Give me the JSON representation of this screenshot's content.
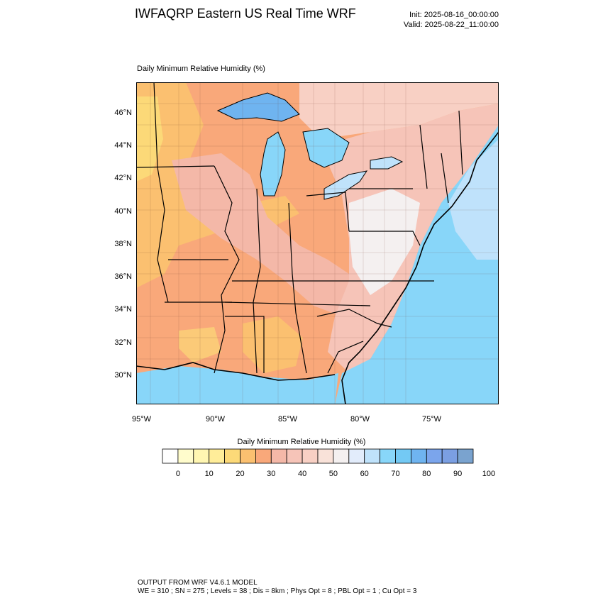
{
  "title": "IWFAQRP Eastern US Real Time WRF",
  "init": "Init: 2025-08-16_00:00:00",
  "valid": "Valid: 2025-08-22_11:00:00",
  "plot_title": "Daily Minimum Relative Humidity   (%)",
  "lat_labels": [
    "46°N",
    "44°N",
    "42°N",
    "40°N",
    "38°N",
    "36°N",
    "34°N",
    "32°N",
    "30°N"
  ],
  "lon_labels": [
    "95°W",
    "90°W",
    "85°W",
    "80°W",
    "75°W"
  ],
  "colorbar": {
    "title": "Daily Minimum Relative Humidity  (%)",
    "tick_labels": [
      "0",
      "10",
      "20",
      "30",
      "40",
      "50",
      "60",
      "70",
      "80",
      "90",
      "100"
    ],
    "colors": [
      "#ffffff",
      "#fffccc",
      "#fff6b2",
      "#ffed99",
      "#fcd978",
      "#fbc070",
      "#f9a87a",
      "#f4b8a8",
      "#f6c4b8",
      "#f8d0c4",
      "#f9e2d9",
      "#f4f0f0",
      "#e2ecfb",
      "#bfe2fb",
      "#88d6f9",
      "#73c9f4",
      "#6fb4f0",
      "#7ba5ec",
      "#7b9fe2",
      "#7aa3cf"
    ]
  },
  "colors": {
    "dry_orange": "#f9a87a",
    "very_dry_yellow": "#fcd978",
    "moist_pink": "#f4b8a8",
    "neutral_white": "#f4f0f0",
    "humid_blue": "#88d6f9",
    "lake_blue": "#6fb4f0"
  },
  "footer_line1": "OUTPUT FROM WRF V4.6.1 MODEL",
  "footer_line2": "WE = 310 ; SN = 275 ; Levels = 38 ; Dis = 8km ; Phys Opt = 8 ; PBL Opt = 1 ; Cu Opt = 3"
}
